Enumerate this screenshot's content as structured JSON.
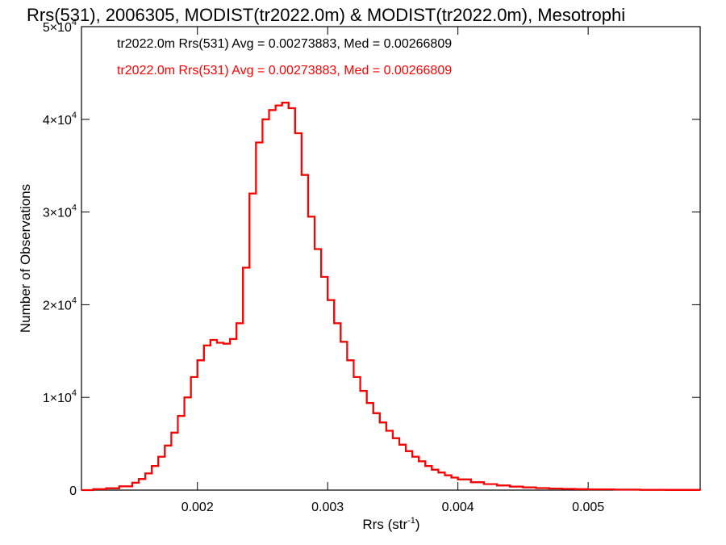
{
  "chart_data": {
    "type": "line",
    "title": "Rrs(531), 2006305, MODIST(tr2022.0m) & MODIST(tr2022.0m), Mesotrophi",
    "xlabel": "Rrs (str",
    "xlabel_sup": "-1",
    "xlabel_suffix": ")",
    "ylabel": "Number of Observations",
    "xlim": [
      0.00111,
      0.00586
    ],
    "ylim": [
      0,
      50000
    ],
    "xticks": [
      {
        "value": 0.002,
        "label": "0.002"
      },
      {
        "value": 0.003,
        "label": "0.003"
      },
      {
        "value": 0.004,
        "label": "0.004"
      },
      {
        "value": 0.005,
        "label": "0.005"
      }
    ],
    "yticks": [
      {
        "value": 0,
        "label": "0",
        "exp": ""
      },
      {
        "value": 10000,
        "label": "1×10",
        "exp": "4"
      },
      {
        "value": 20000,
        "label": "2×10",
        "exp": "4"
      },
      {
        "value": 30000,
        "label": "3×10",
        "exp": "4"
      },
      {
        "value": 40000,
        "label": "4×10",
        "exp": "4"
      },
      {
        "value": 50000,
        "label": "5×10",
        "exp": "4"
      }
    ],
    "legend_placement": "top-left",
    "legend": [
      {
        "text": "tr2022.0m Rrs(531) Avg = 0.00273883, Med = 0.00266809",
        "color": "#000000"
      },
      {
        "text": "tr2022.0m Rrs(531) Avg = 0.00273883, Med = 0.00266809",
        "color": "#ff0000"
      }
    ],
    "series": [
      {
        "color": "#000000",
        "x": [
          0.00111,
          0.0012,
          0.0013,
          0.0014,
          0.0015,
          0.00155,
          0.0016,
          0.00165,
          0.0017,
          0.00175,
          0.0018,
          0.00185,
          0.0019,
          0.00195,
          0.002,
          0.00205,
          0.0021,
          0.00215,
          0.0022,
          0.00225,
          0.0023,
          0.00235,
          0.0024,
          0.00245,
          0.0025,
          0.00255,
          0.0026,
          0.00265,
          0.0027,
          0.00275,
          0.0028,
          0.00285,
          0.0029,
          0.00295,
          0.003,
          0.00305,
          0.0031,
          0.00315,
          0.0032,
          0.00325,
          0.0033,
          0.00335,
          0.0034,
          0.00345,
          0.0035,
          0.00355,
          0.0036,
          0.00365,
          0.0037,
          0.00375,
          0.0038,
          0.00385,
          0.0039,
          0.00395,
          0.004,
          0.0041,
          0.0042,
          0.0043,
          0.0044,
          0.0045,
          0.0046,
          0.0047,
          0.0048,
          0.0049,
          0.005,
          0.0052,
          0.0054,
          0.0056,
          0.00586
        ],
        "y": [
          0,
          100,
          200,
          400,
          800,
          1200,
          1800,
          2600,
          3600,
          4800,
          6200,
          8000,
          10000,
          12200,
          14000,
          15600,
          16200,
          15900,
          15800,
          16300,
          18000,
          24000,
          32000,
          37500,
          40000,
          41000,
          41500,
          41800,
          41200,
          38500,
          34000,
          29500,
          26000,
          23000,
          20500,
          18000,
          16000,
          14000,
          12200,
          10700,
          9400,
          8300,
          7300,
          6400,
          5600,
          4900,
          4200,
          3600,
          3100,
          2600,
          2200,
          1900,
          1600,
          1350,
          1150,
          850,
          650,
          500,
          380,
          290,
          220,
          170,
          130,
          100,
          80,
          50,
          30,
          20,
          10
        ]
      },
      {
        "color": "#ff0000",
        "x": [
          0.00111,
          0.0012,
          0.0013,
          0.0014,
          0.0015,
          0.00155,
          0.0016,
          0.00165,
          0.0017,
          0.00175,
          0.0018,
          0.00185,
          0.0019,
          0.00195,
          0.002,
          0.00205,
          0.0021,
          0.00215,
          0.0022,
          0.00225,
          0.0023,
          0.00235,
          0.0024,
          0.00245,
          0.0025,
          0.00255,
          0.0026,
          0.00265,
          0.0027,
          0.00275,
          0.0028,
          0.00285,
          0.0029,
          0.00295,
          0.003,
          0.00305,
          0.0031,
          0.00315,
          0.0032,
          0.00325,
          0.0033,
          0.00335,
          0.0034,
          0.00345,
          0.0035,
          0.00355,
          0.0036,
          0.00365,
          0.0037,
          0.00375,
          0.0038,
          0.00385,
          0.0039,
          0.00395,
          0.004,
          0.0041,
          0.0042,
          0.0043,
          0.0044,
          0.0045,
          0.0046,
          0.0047,
          0.0048,
          0.0049,
          0.005,
          0.0052,
          0.0054,
          0.0056,
          0.00586
        ],
        "y": [
          0,
          100,
          200,
          400,
          800,
          1200,
          1800,
          2600,
          3600,
          4800,
          6200,
          8000,
          10000,
          12200,
          14000,
          15600,
          16200,
          15900,
          15800,
          16300,
          18000,
          24000,
          32000,
          37500,
          40000,
          41000,
          41500,
          41800,
          41200,
          38500,
          34000,
          29500,
          26000,
          23000,
          20500,
          18000,
          16000,
          14000,
          12200,
          10700,
          9400,
          8300,
          7300,
          6400,
          5600,
          4900,
          4200,
          3600,
          3100,
          2600,
          2200,
          1900,
          1600,
          1350,
          1150,
          850,
          650,
          500,
          380,
          290,
          220,
          170,
          130,
          100,
          80,
          50,
          30,
          20,
          10
        ]
      }
    ]
  }
}
